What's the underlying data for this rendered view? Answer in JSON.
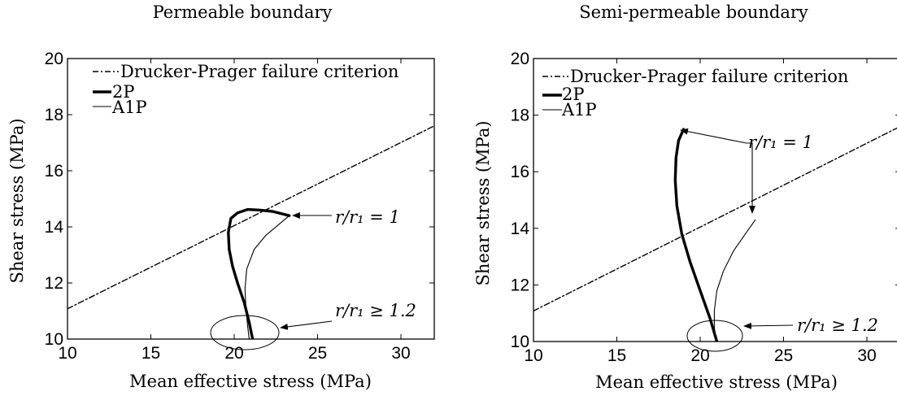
{
  "chart_data": [
    {
      "type": "line",
      "title": "Permeable boundary",
      "xlabel": "Mean effective stress (MPa)",
      "ylabel": "Shear stress (MPa)",
      "xlim": [
        10,
        32
      ],
      "ylim": [
        10,
        20
      ],
      "xticks": [
        10,
        15,
        20,
        25,
        30
      ],
      "yticks": [
        10,
        12,
        14,
        16,
        18,
        20
      ],
      "xtick_labels": [
        "10",
        "15",
        "20",
        "25",
        "30"
      ],
      "ytick_labels": [
        "10",
        "12",
        "14",
        "16",
        "18",
        "20"
      ],
      "grid": false,
      "legend_position": "top-left",
      "series": [
        {
          "name": "Drucker-Prager failure criterion",
          "style": "dashdot",
          "x": [
            10,
            32
          ],
          "y": [
            11.08,
            17.6
          ]
        },
        {
          "name": "2P",
          "style": "thick",
          "x": [
            21.1,
            20.9,
            20.6,
            20.2,
            19.9,
            19.7,
            19.65,
            19.8,
            20.2,
            20.8,
            21.5,
            22.3,
            23.3
          ],
          "y": [
            10.0,
            10.6,
            11.3,
            12.0,
            12.6,
            13.2,
            13.8,
            14.3,
            14.5,
            14.62,
            14.6,
            14.55,
            14.4
          ]
        },
        {
          "name": "A1P",
          "style": "thin",
          "x": [
            20.9,
            20.8,
            20.7,
            20.65,
            20.75,
            21.2,
            21.9,
            22.7,
            23.3
          ],
          "y": [
            10.0,
            10.5,
            11.1,
            11.8,
            12.5,
            13.2,
            13.7,
            14.1,
            14.4
          ]
        }
      ],
      "annotations": [
        {
          "text": "r/r₁ = 1"
        },
        {
          "text": "r/r₁ ≥ 1.2"
        }
      ]
    },
    {
      "type": "line",
      "title": "Semi-permeable boundary",
      "xlabel": "Mean effective stress (MPa)",
      "ylabel": "Shear stress (MPa)",
      "xlim": [
        10,
        32
      ],
      "ylim": [
        10,
        20
      ],
      "xticks": [
        10,
        15,
        20,
        25,
        30
      ],
      "yticks": [
        10,
        12,
        14,
        16,
        18,
        20
      ],
      "xtick_labels": [
        "10",
        "15",
        "20",
        "25",
        "30"
      ],
      "ytick_labels": [
        "10",
        "12",
        "14",
        "16",
        "18",
        "20"
      ],
      "grid": false,
      "legend_position": "top-left",
      "series": [
        {
          "name": "Drucker-Prager failure criterion",
          "style": "dashdot",
          "x": [
            10,
            32
          ],
          "y": [
            11.08,
            17.6
          ]
        },
        {
          "name": "2P",
          "style": "thick",
          "x": [
            21.0,
            20.6,
            20.0,
            19.4,
            18.9,
            18.6,
            18.5,
            18.55,
            18.7,
            19.0
          ],
          "y": [
            10.0,
            10.8,
            11.8,
            12.8,
            13.8,
            14.8,
            15.7,
            16.5,
            17.1,
            17.5
          ]
        },
        {
          "name": "A1P",
          "style": "thin",
          "x": [
            20.95,
            20.85,
            20.85,
            21.0,
            21.4,
            22.0,
            22.7,
            23.3
          ],
          "y": [
            10.0,
            10.5,
            11.1,
            11.8,
            12.5,
            13.2,
            13.8,
            14.3
          ]
        }
      ],
      "annotations": [
        {
          "text": "r/r₁ = 1"
        },
        {
          "text": "r/r₁ ≥ 1.2"
        }
      ]
    }
  ]
}
